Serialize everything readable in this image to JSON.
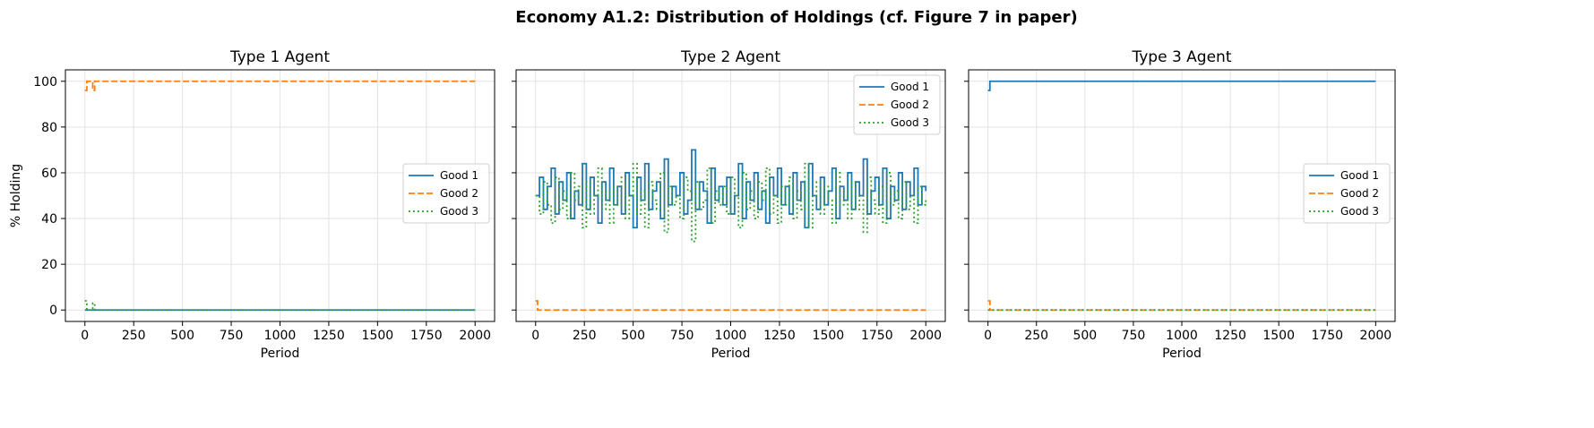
{
  "chart_data": {
    "type": "line",
    "title": "Economy A1.2: Distribution of Holdings (cf. Figure 7 in paper)",
    "colors": {
      "Good 1": "#1f77b4",
      "Good 2": "#ff7f0e",
      "Good 3": "#2ca02c"
    },
    "line_styles": {
      "Good 1": "solid",
      "Good 2": "dashed",
      "Good 3": "dotted"
    },
    "grid": true,
    "ylim": [
      -5,
      105
    ],
    "xlim": [
      -100,
      2100
    ],
    "xticks": [
      0,
      250,
      500,
      750,
      1000,
      1250,
      1500,
      1750,
      2000
    ],
    "yticks": [
      0,
      20,
      40,
      60,
      80,
      100
    ],
    "ylabel": "% Holding",
    "panels": [
      {
        "title": "Type 1 Agent",
        "xlabel": "Period",
        "legend": "center-right",
        "series": [
          {
            "name": "Good 1",
            "x": [
              0,
              2000
            ],
            "y": [
              0,
              0
            ]
          },
          {
            "name": "Good 2",
            "x": [
              0,
              10,
              20,
              30,
              40,
              50,
              2000
            ],
            "y": [
              96,
              100,
              100,
              100,
              96,
              100,
              100
            ]
          },
          {
            "name": "Good 3",
            "x": [
              0,
              10,
              20,
              30,
              40,
              50,
              2000
            ],
            "y": [
              4,
              0,
              0,
              0,
              3,
              0,
              0
            ]
          }
        ]
      },
      {
        "title": "Type 2 Agent",
        "xlabel": "Period",
        "legend": "top-right",
        "series": [
          {
            "name": "Good 1",
            "x": [
              0,
              20,
              40,
              60,
              80,
              100,
              120,
              140,
              160,
              180,
              200,
              220,
              240,
              260,
              280,
              300,
              320,
              340,
              360,
              380,
              400,
              420,
              440,
              460,
              480,
              500,
              520,
              540,
              560,
              580,
              600,
              620,
              640,
              660,
              680,
              700,
              720,
              740,
              760,
              780,
              800,
              820,
              840,
              860,
              880,
              900,
              920,
              940,
              960,
              980,
              1000,
              1020,
              1040,
              1060,
              1080,
              1100,
              1120,
              1140,
              1160,
              1180,
              1200,
              1220,
              1240,
              1260,
              1280,
              1300,
              1320,
              1340,
              1360,
              1380,
              1400,
              1420,
              1440,
              1460,
              1480,
              1500,
              1520,
              1540,
              1560,
              1580,
              1600,
              1620,
              1640,
              1660,
              1680,
              1700,
              1720,
              1740,
              1760,
              1780,
              1800,
              1820,
              1840,
              1860,
              1880,
              1900,
              1920,
              1940,
              1960,
              1980,
              2000
            ],
            "y": [
              50,
              58,
              44,
              54,
              62,
              42,
              56,
              48,
              60,
              40,
              52,
              46,
              64,
              44,
              58,
              50,
              38,
              56,
              48,
              62,
              46,
              54,
              42,
              60,
              50,
              36,
              58,
              48,
              64,
              44,
              52,
              56,
              40,
              66,
              46,
              54,
              50,
              60,
              42,
              48,
              70,
              44,
              56,
              52,
              38,
              62,
              48,
              54,
              46,
              58,
              42,
              50,
              64,
              40,
              56,
              48,
              60,
              44,
              52,
              38,
              58,
              50,
              62,
              46,
              54,
              42,
              60,
              48,
              56,
              36,
              64,
              50,
              44,
              58,
              46,
              52,
              62,
              40,
              54,
              48,
              60,
              44,
              56,
              50,
              66,
              42,
              52,
              58,
              46,
              62,
              40,
              54,
              48,
              60,
              44,
              56,
              50,
              62,
              46,
              54,
              52
            ]
          },
          {
            "name": "Good 2",
            "x": [
              0,
              10,
              2000
            ],
            "y": [
              4,
              0,
              0
            ]
          },
          {
            "name": "Good 3",
            "x": [
              0,
              20,
              40,
              60,
              80,
              100,
              120,
              140,
              160,
              180,
              200,
              220,
              240,
              260,
              280,
              300,
              320,
              340,
              360,
              380,
              400,
              420,
              440,
              460,
              480,
              500,
              520,
              540,
              560,
              580,
              600,
              620,
              640,
              660,
              680,
              700,
              720,
              740,
              760,
              780,
              800,
              820,
              840,
              860,
              880,
              900,
              920,
              940,
              960,
              980,
              1000,
              1020,
              1040,
              1060,
              1080,
              1100,
              1120,
              1140,
              1160,
              1180,
              1200,
              1220,
              1240,
              1260,
              1280,
              1300,
              1320,
              1340,
              1360,
              1380,
              1400,
              1420,
              1440,
              1460,
              1480,
              1500,
              1520,
              1540,
              1560,
              1580,
              1600,
              1620,
              1640,
              1660,
              1680,
              1700,
              1720,
              1740,
              1760,
              1780,
              1800,
              1820,
              1840,
              1860,
              1880,
              1900,
              1920,
              1940,
              1960,
              1980,
              2000
            ],
            "y": [
              50,
              42,
              56,
              46,
              38,
              58,
              44,
              52,
              40,
              60,
              48,
              54,
              36,
              56,
              42,
              50,
              62,
              44,
              52,
              38,
              54,
              46,
              58,
              40,
              50,
              64,
              42,
              52,
              36,
              56,
              48,
              44,
              60,
              34,
              54,
              46,
              50,
              40,
              58,
              52,
              30,
              56,
              44,
              48,
              62,
              38,
              52,
              46,
              54,
              42,
              58,
              50,
              36,
              60,
              44,
              52,
              40,
              56,
              48,
              62,
              42,
              50,
              38,
              54,
              46,
              58,
              40,
              52,
              44,
              64,
              36,
              50,
              56,
              42,
              54,
              48,
              38,
              60,
              46,
              52,
              40,
              56,
              44,
              50,
              34,
              58,
              48,
              42,
              54,
              38,
              60,
              46,
              52,
              40,
              56,
              44,
              50,
              38,
              54,
              46,
              48
            ]
          }
        ]
      },
      {
        "title": "Type 3 Agent",
        "xlabel": "Period",
        "legend": "center-right",
        "series": [
          {
            "name": "Good 1",
            "x": [
              0,
              10,
              2000
            ],
            "y": [
              96,
              100,
              100
            ]
          },
          {
            "name": "Good 2",
            "x": [
              0,
              10,
              2000
            ],
            "y": [
              4,
              0,
              0
            ]
          },
          {
            "name": "Good 3",
            "x": [
              0,
              2000
            ],
            "y": [
              0,
              0
            ]
          }
        ]
      }
    ]
  }
}
